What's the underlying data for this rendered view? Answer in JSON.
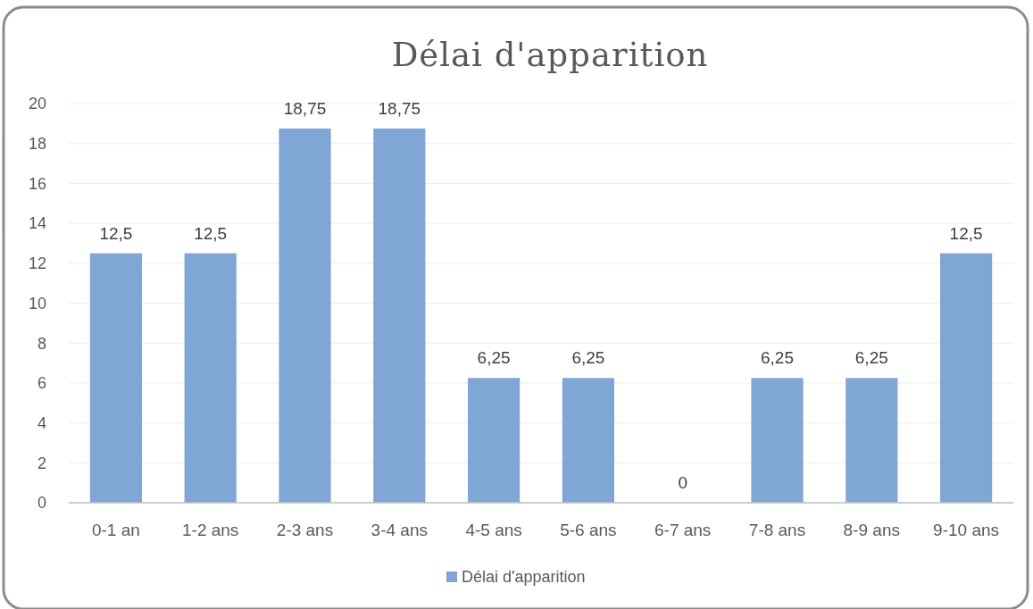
{
  "chart_data": {
    "type": "bar",
    "title": "Délai d'apparition",
    "categories": [
      "0-1 an",
      "1-2 ans",
      "2-3 ans",
      "3-4 ans",
      "4-5 ans",
      "5-6 ans",
      "6-7 ans",
      "7-8 ans",
      "8-9 ans",
      "9-10 ans"
    ],
    "series": [
      {
        "name": "Délai d'apparition",
        "color": "#7fa6d4",
        "values": [
          12.5,
          12.5,
          18.75,
          18.75,
          6.25,
          6.25,
          0,
          6.25,
          6.25,
          12.5
        ],
        "value_labels": [
          "12,5",
          "12,5",
          "18,75",
          "18,75",
          "6,25",
          "6,25",
          "0",
          "6,25",
          "6,25",
          "12,5"
        ]
      }
    ],
    "ylim": [
      0,
      20
    ],
    "yticks": [
      0,
      2,
      4,
      6,
      8,
      10,
      12,
      14,
      16,
      18,
      20
    ],
    "grid": "y",
    "legend": "bottom"
  }
}
